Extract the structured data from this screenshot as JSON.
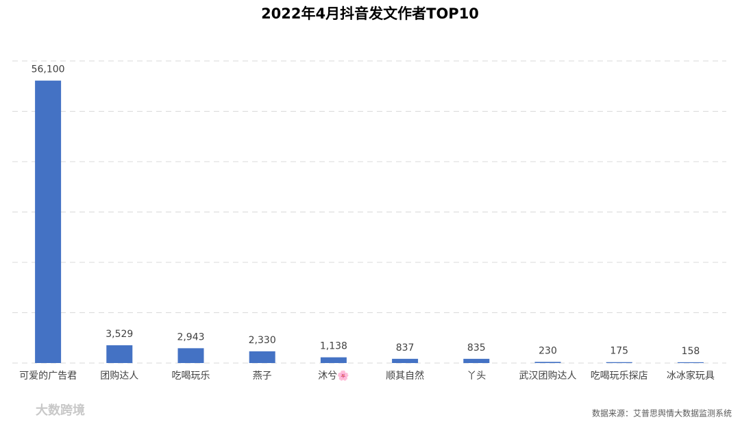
{
  "chart_data": {
    "type": "bar",
    "title": "2022年4月抖音发文作者TOP10",
    "categories": [
      "可爱的广告君",
      "团购达人",
      "吃喝玩乐",
      "燕子",
      "沐兮🌸",
      "顺其自然",
      "丫头",
      "武汉团购达人",
      "吃喝玩乐探店",
      "冰冰家玩具"
    ],
    "values": [
      56100,
      3529,
      2943,
      2330,
      1138,
      837,
      835,
      230,
      175,
      158
    ],
    "value_labels": [
      "56,100",
      "3,529",
      "2,943",
      "2,330",
      "1,138",
      "837",
      "835",
      "230",
      "175",
      "158"
    ],
    "color": "#4472c4",
    "ylim": [
      0,
      60000
    ],
    "yticks": [
      0,
      10000,
      20000,
      30000,
      40000,
      50000,
      60000
    ],
    "grid": true,
    "source": "数据来源：艾普思舆情大数据监测系统",
    "watermark": "大数跨境"
  }
}
